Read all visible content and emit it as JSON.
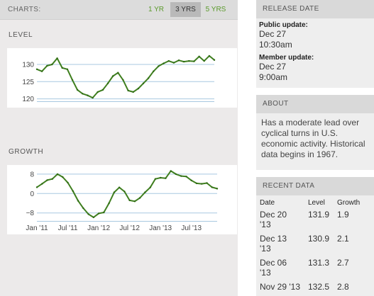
{
  "charts_bar": {
    "label": "CHARTS:",
    "ranges": [
      {
        "label": "1 YR",
        "selected": false
      },
      {
        "label": "3 YRS",
        "selected": true
      },
      {
        "label": "5 YRS",
        "selected": false
      }
    ]
  },
  "level_chart": {
    "title": "LEVEL",
    "chart_data": {
      "type": "line",
      "title": "LEVEL",
      "x_labels": [
        "Jan '11",
        "Jul '11",
        "Jan '12",
        "Jul '12",
        "Jan '13",
        "Jul '13"
      ],
      "y_ticks": [
        120,
        125,
        130
      ],
      "ylim": [
        119.5,
        133.5
      ],
      "x_range": [
        "2011-01",
        "2013-12"
      ],
      "series_color": "#3f7f1f",
      "gridline_color": "#a8c8e0",
      "points": [
        {
          "x": "2011-01",
          "y": 128.6
        },
        {
          "x": "2011-02",
          "y": 128.0
        },
        {
          "x": "2011-03",
          "y": 129.6
        },
        {
          "x": "2011-04",
          "y": 130.0
        },
        {
          "x": "2011-05",
          "y": 131.8
        },
        {
          "x": "2011-06",
          "y": 129.0
        },
        {
          "x": "2011-07",
          "y": 128.6
        },
        {
          "x": "2011-08",
          "y": 125.5
        },
        {
          "x": "2011-09",
          "y": 122.6
        },
        {
          "x": "2011-10",
          "y": 121.5
        },
        {
          "x": "2011-11",
          "y": 121.0
        },
        {
          "x": "2011-12",
          "y": 120.3
        },
        {
          "x": "2012-01",
          "y": 122.0
        },
        {
          "x": "2012-02",
          "y": 122.6
        },
        {
          "x": "2012-03",
          "y": 124.5
        },
        {
          "x": "2012-04",
          "y": 126.6
        },
        {
          "x": "2012-05",
          "y": 127.6
        },
        {
          "x": "2012-06",
          "y": 125.5
        },
        {
          "x": "2012-07",
          "y": 122.4
        },
        {
          "x": "2012-08",
          "y": 122.0
        },
        {
          "x": "2012-09",
          "y": 123.0
        },
        {
          "x": "2012-10",
          "y": 124.5
        },
        {
          "x": "2012-11",
          "y": 126.0
        },
        {
          "x": "2012-12",
          "y": 128.0
        },
        {
          "x": "2013-01",
          "y": 129.5
        },
        {
          "x": "2013-02",
          "y": 130.3
        },
        {
          "x": "2013-03",
          "y": 131.0
        },
        {
          "x": "2013-04",
          "y": 130.5
        },
        {
          "x": "2013-05",
          "y": 131.2
        },
        {
          "x": "2013-06",
          "y": 130.8
        },
        {
          "x": "2013-07",
          "y": 131.0
        },
        {
          "x": "2013-08",
          "y": 130.9
        },
        {
          "x": "2013-09",
          "y": 132.3
        },
        {
          "x": "2013-10",
          "y": 131.0
        },
        {
          "x": "2013-11",
          "y": 132.5
        },
        {
          "x": "2013-12",
          "y": 131.3
        }
      ]
    }
  },
  "growth_chart": {
    "title": "GROWTH",
    "chart_data": {
      "type": "line",
      "title": "GROWTH",
      "x_labels": [
        "Jan '11",
        "Jul '11",
        "Jan '12",
        "Jul '12",
        "Jan '13",
        "Jul '13"
      ],
      "y_ticks": [
        -8,
        0,
        8
      ],
      "ylim": [
        -11,
        10
      ],
      "x_range": [
        "2011-01",
        "2013-12"
      ],
      "series_color": "#3f7f1f",
      "gridline_color": "#a8c8e0",
      "points": [
        {
          "x": "2011-01",
          "y": 2.6
        },
        {
          "x": "2011-02",
          "y": 4.0
        },
        {
          "x": "2011-03",
          "y": 5.5
        },
        {
          "x": "2011-04",
          "y": 6.0
        },
        {
          "x": "2011-05",
          "y": 8.0
        },
        {
          "x": "2011-06",
          "y": 6.8
        },
        {
          "x": "2011-07",
          "y": 4.5
        },
        {
          "x": "2011-08",
          "y": 1.0
        },
        {
          "x": "2011-09",
          "y": -3.0
        },
        {
          "x": "2011-10",
          "y": -6.0
        },
        {
          "x": "2011-11",
          "y": -8.5
        },
        {
          "x": "2011-12",
          "y": -9.8
        },
        {
          "x": "2012-01",
          "y": -8.2
        },
        {
          "x": "2012-02",
          "y": -7.8
        },
        {
          "x": "2012-03",
          "y": -4.0
        },
        {
          "x": "2012-04",
          "y": 0.5
        },
        {
          "x": "2012-05",
          "y": 2.5
        },
        {
          "x": "2012-06",
          "y": 0.8
        },
        {
          "x": "2012-07",
          "y": -2.8
        },
        {
          "x": "2012-08",
          "y": -3.2
        },
        {
          "x": "2012-09",
          "y": -1.8
        },
        {
          "x": "2012-10",
          "y": 0.5
        },
        {
          "x": "2012-11",
          "y": 2.5
        },
        {
          "x": "2012-12",
          "y": 6.0
        },
        {
          "x": "2013-01",
          "y": 6.5
        },
        {
          "x": "2013-02",
          "y": 6.3
        },
        {
          "x": "2013-03",
          "y": 9.3
        },
        {
          "x": "2013-04",
          "y": 8.0
        },
        {
          "x": "2013-05",
          "y": 7.2
        },
        {
          "x": "2013-06",
          "y": 7.0
        },
        {
          "x": "2013-07",
          "y": 5.4
        },
        {
          "x": "2013-08",
          "y": 4.2
        },
        {
          "x": "2013-09",
          "y": 4.0
        },
        {
          "x": "2013-10",
          "y": 4.3
        },
        {
          "x": "2013-11",
          "y": 2.6
        },
        {
          "x": "2013-12",
          "y": 2.0
        }
      ]
    }
  },
  "release_date": {
    "title": "RELEASE DATE",
    "public_label": "Public update:",
    "public_date": "Dec 27",
    "public_time": "10:30am",
    "member_label": "Member update:",
    "member_date": "Dec 27",
    "member_time": "9:00am"
  },
  "about": {
    "title": "ABOUT",
    "text": "Has a moderate lead over cyclical turns in U.S. economic activity. Historical data begins in 1967."
  },
  "recent_data": {
    "title": "RECENT DATA",
    "headers": {
      "date": "Date",
      "level": "Level",
      "growth": "Growth"
    },
    "rows": [
      {
        "date_line1": "Dec 20",
        "date_line2": "'13",
        "level": "131.9",
        "growth": "1.9"
      },
      {
        "date_line1": "Dec 13",
        "date_line2": "'13",
        "level": "130.9",
        "growth": "2.1"
      },
      {
        "date_line1": "Dec 06",
        "date_line2": "'13",
        "level": "131.3",
        "growth": "2.7"
      },
      {
        "date_line1": "Nov 29 '13",
        "date_line2": "",
        "level": "132.5",
        "growth": "2.8"
      }
    ]
  }
}
